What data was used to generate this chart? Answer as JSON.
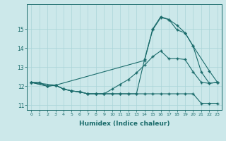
{
  "xlabel": "Humidex (Indice chaleur)",
  "bg_color": "#cce8ea",
  "grid_color": "#aad4d8",
  "line_color": "#1a6b6b",
  "xlim": [
    -0.5,
    23.5
  ],
  "ylim": [
    10.75,
    16.3
  ],
  "yticks": [
    11,
    12,
    13,
    14,
    15
  ],
  "xticks": [
    0,
    1,
    2,
    3,
    4,
    5,
    6,
    7,
    8,
    9,
    10,
    11,
    12,
    13,
    14,
    15,
    16,
    17,
    18,
    19,
    20,
    21,
    22,
    23
  ],
  "line1_x": [
    0,
    1,
    2,
    3,
    4,
    5,
    6,
    7,
    8,
    9,
    10,
    11,
    12,
    13,
    14,
    15,
    16,
    17,
    18,
    19,
    20,
    21,
    22,
    23
  ],
  "line1_y": [
    12.2,
    12.2,
    12.0,
    12.05,
    11.85,
    11.75,
    11.7,
    11.6,
    11.6,
    11.6,
    11.6,
    11.6,
    11.6,
    11.6,
    11.6,
    11.6,
    11.6,
    11.6,
    11.6,
    11.6,
    11.6,
    11.1,
    11.1,
    11.1
  ],
  "line2_x": [
    0,
    2,
    3,
    4,
    5,
    6,
    7,
    8,
    9,
    10,
    11,
    12,
    13,
    14,
    15,
    16,
    17,
    18,
    19,
    20,
    21,
    22,
    23
  ],
  "line2_y": [
    12.2,
    12.0,
    12.05,
    11.85,
    11.75,
    11.7,
    11.6,
    11.6,
    11.6,
    11.85,
    12.1,
    12.35,
    12.7,
    13.1,
    13.55,
    13.85,
    13.45,
    13.45,
    13.4,
    12.75,
    12.2,
    12.15,
    12.2
  ],
  "line3_x": [
    0,
    3,
    14,
    15,
    16,
    17,
    18,
    19,
    20,
    22,
    23
  ],
  "line3_y": [
    12.2,
    12.05,
    13.35,
    14.95,
    15.6,
    15.5,
    15.2,
    14.8,
    14.1,
    12.8,
    12.2
  ],
  "line4_x": [
    0,
    2,
    3,
    4,
    5,
    6,
    7,
    8,
    9,
    10,
    11,
    12,
    13,
    14,
    15,
    16,
    17,
    18,
    19,
    20,
    21,
    22,
    23
  ],
  "line4_y": [
    12.2,
    12.0,
    12.05,
    11.85,
    11.75,
    11.7,
    11.6,
    11.6,
    11.6,
    11.6,
    11.6,
    11.6,
    11.6,
    13.4,
    15.0,
    15.65,
    15.5,
    14.95,
    14.8,
    14.1,
    12.75,
    12.15,
    12.2
  ]
}
